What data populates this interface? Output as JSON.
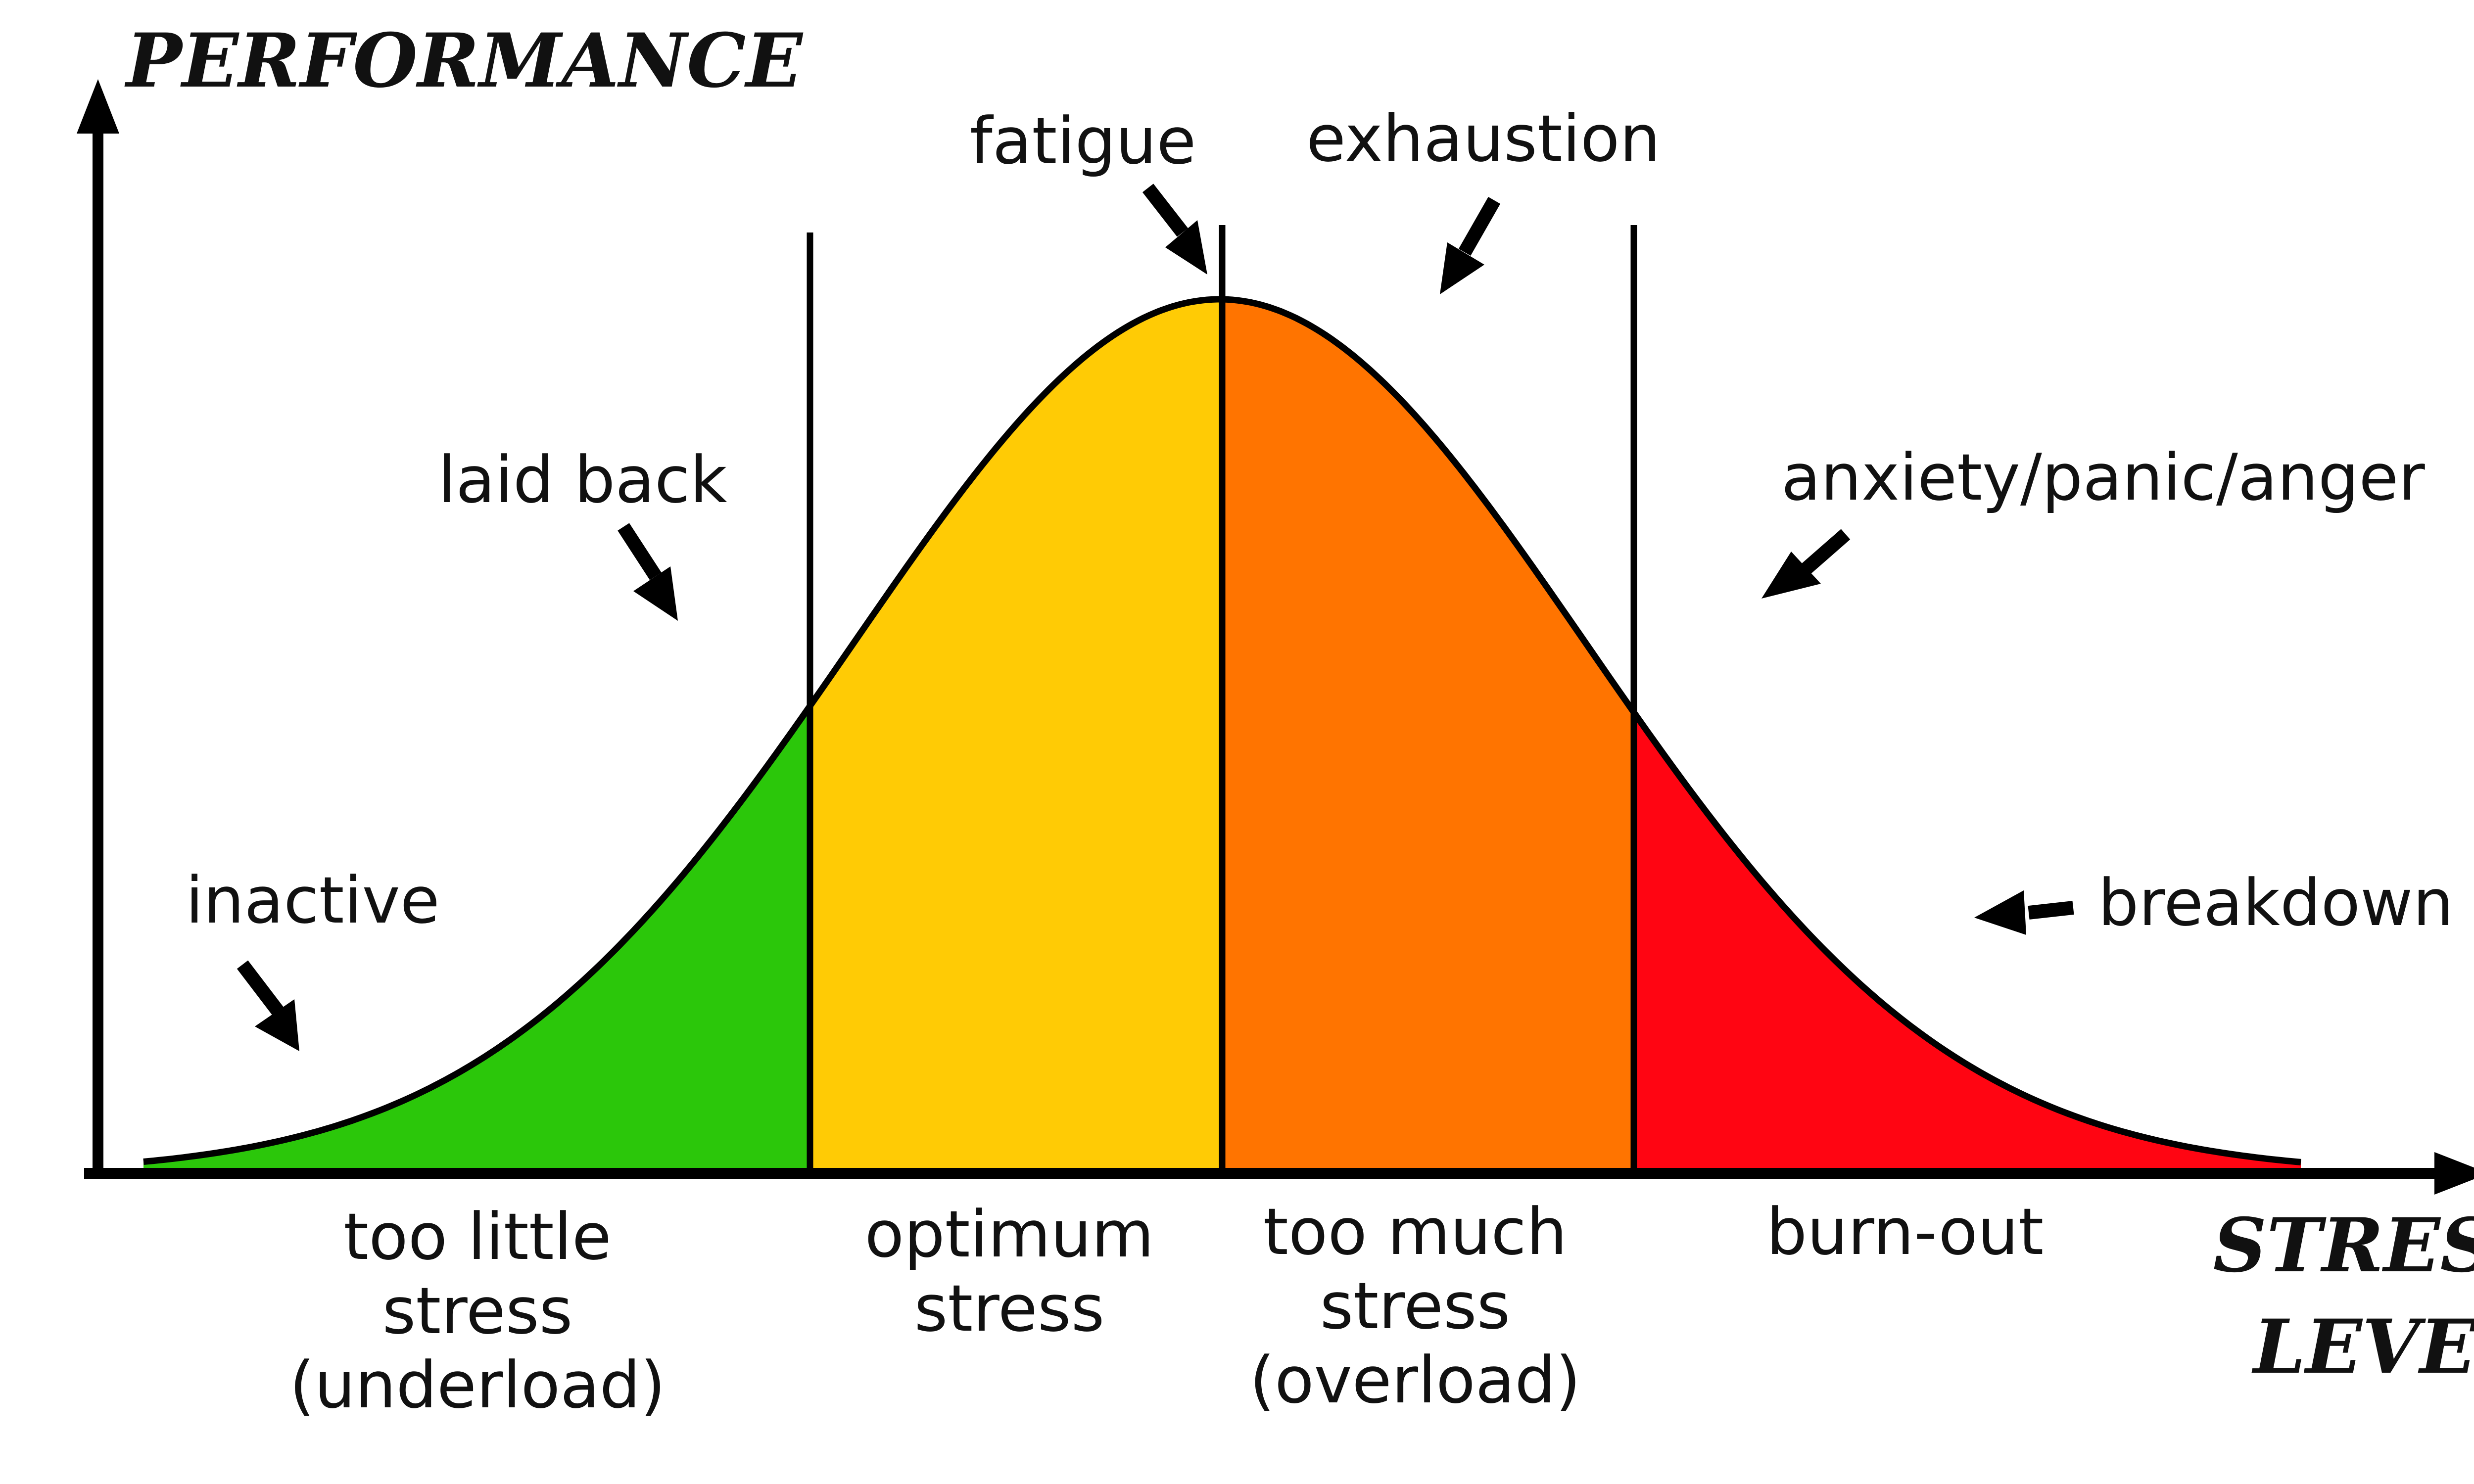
{
  "axes": {
    "y_title": "PERFORMANCE",
    "x_title_lines": [
      "STRESS",
      "LEVEL"
    ]
  },
  "zones": [
    {
      "key": "underload",
      "color": "#2bc70a",
      "label_lines": [
        "too little",
        "stress",
        "(underload)"
      ]
    },
    {
      "key": "optimum",
      "color": "#ffcb05",
      "label_lines": [
        "optimum",
        "stress"
      ]
    },
    {
      "key": "overload",
      "color": "#ff7400",
      "label_lines": [
        "too much",
        "stress",
        "(overload)"
      ]
    },
    {
      "key": "burnout",
      "color": "#ff0512",
      "label_lines": [
        "burn-out"
      ]
    }
  ],
  "annotations": {
    "inactive": "inactive",
    "laid_back": "laid back",
    "fatigue": "fatigue",
    "exhaustion": "exhaustion",
    "anxiety": "anxiety/panic/anger",
    "breakdown": "breakdown"
  },
  "colors": {
    "outline": "#000000",
    "background": "#ffffff"
  }
}
